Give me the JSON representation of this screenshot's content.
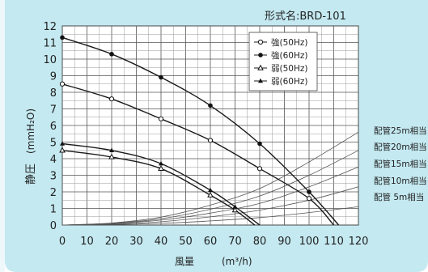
{
  "model_label": "形式名:BRD-101",
  "chart_data": {
    "type": "line",
    "x_unit_label": "風量",
    "x_unit": "(m³/h)",
    "y_unit_label": "静圧",
    "y_unit": "(mmH₂O)",
    "xlim": [
      0,
      120
    ],
    "ylim": [
      0,
      12
    ],
    "x_ticks": [
      "0",
      "10",
      "20",
      "30",
      "40",
      "50",
      "60",
      "70",
      "80",
      "90",
      "100",
      "110",
      "120"
    ],
    "y_ticks": [
      "0",
      "1",
      "2",
      "3",
      "4",
      "5",
      "6",
      "7",
      "8",
      "9",
      "10",
      "11",
      "12"
    ],
    "grid": true,
    "legend_position": "top-right",
    "series": [
      {
        "name": "強(50Hz)",
        "marker": "open-circle",
        "x": [
          0,
          20,
          40,
          60,
          80,
          100,
          110
        ],
        "y": [
          8.5,
          7.6,
          6.4,
          5.1,
          3.4,
          1.6,
          0
        ]
      },
      {
        "name": "強(60Hz)",
        "marker": "filled-circle",
        "x": [
          0,
          20,
          40,
          60,
          80,
          100,
          112
        ],
        "y": [
          11.3,
          10.3,
          8.9,
          7.2,
          4.9,
          2.0,
          0
        ]
      },
      {
        "name": "弱(50Hz)",
        "marker": "open-triangle",
        "x": [
          0,
          20,
          40,
          60,
          70,
          78
        ],
        "y": [
          4.5,
          4.1,
          3.4,
          1.8,
          0.9,
          0
        ]
      },
      {
        "name": "弱(60Hz)",
        "marker": "filled-triangle",
        "x": [
          0,
          20,
          40,
          60,
          70,
          80
        ],
        "y": [
          4.9,
          4.5,
          3.7,
          2.1,
          1.1,
          0
        ]
      }
    ],
    "pipe_series": [
      {
        "name": "配管25m相当",
        "x": [
          0,
          20,
          40,
          60,
          80,
          100,
          120
        ],
        "y": [
          0,
          0.12,
          0.48,
          1.2,
          2.2,
          3.8,
          5.6
        ]
      },
      {
        "name": "配管20m相当",
        "x": [
          0,
          20,
          40,
          60,
          80,
          100,
          120
        ],
        "y": [
          0,
          0.1,
          0.38,
          0.95,
          1.75,
          3.0,
          4.5
        ]
      },
      {
        "name": "配管15m相当",
        "x": [
          0,
          20,
          40,
          60,
          80,
          100,
          120
        ],
        "y": [
          0,
          0.08,
          0.3,
          0.72,
          1.3,
          2.3,
          3.5
        ]
      },
      {
        "name": "配管10m相当",
        "x": [
          0,
          20,
          40,
          60,
          80,
          100,
          120
        ],
        "y": [
          0,
          0.05,
          0.2,
          0.5,
          0.9,
          1.5,
          2.3
        ]
      },
      {
        "name": "配管 5m相当",
        "x": [
          0,
          20,
          40,
          60,
          80,
          100,
          120
        ],
        "y": [
          0,
          0.03,
          0.1,
          0.25,
          0.45,
          0.75,
          1.1
        ]
      }
    ]
  }
}
